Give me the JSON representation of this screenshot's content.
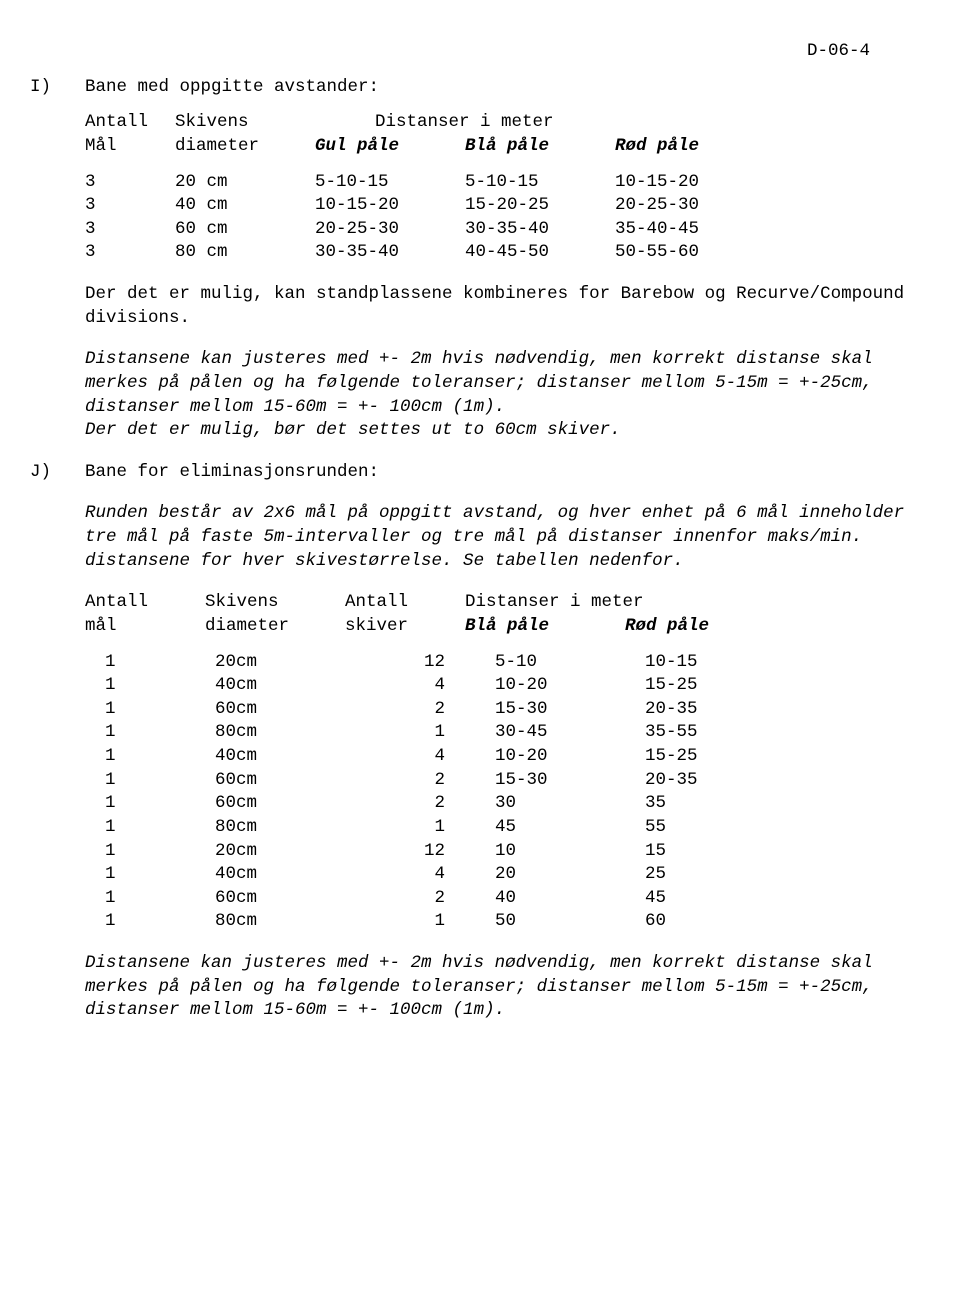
{
  "page_id": "D-06-4",
  "sectionI": {
    "label": "I)",
    "title": "Bane med oppgitte avstander:",
    "header": {
      "r1": {
        "c1": "Antall",
        "c2": "Skivens",
        "c3": "Distanser i meter"
      },
      "r2": {
        "c1": "Mål",
        "c2": "diameter",
        "c3": "Gul påle",
        "c4": "Blå påle",
        "c5": "Rød påle"
      }
    },
    "rows": [
      {
        "antall": "3",
        "dia": "20 cm",
        "gul": "5-10-15",
        "bla": "5-10-15",
        "rod": "10-15-20"
      },
      {
        "antall": "3",
        "dia": "40 cm",
        "gul": "10-15-20",
        "bla": "15-20-25",
        "rod": "20-25-30"
      },
      {
        "antall": "3",
        "dia": "60 cm",
        "gul": "20-25-30",
        "bla": "30-35-40",
        "rod": "35-40-45"
      },
      {
        "antall": "3",
        "dia": "80 cm",
        "gul": "30-35-40",
        "bla": "40-45-50",
        "rod": "50-55-60"
      }
    ],
    "para1": "Der det er mulig, kan standplassene kombineres for Barebow og Recurve/Compound divisions.",
    "para2": "Distansene kan justeres med +- 2m hvis nødvendig, men korrekt distanse skal merkes på pålen og ha følgende toleranser; distanser mellom 5-15m = +-25cm, distanser mellom 15-60m = +- 100cm (1m).",
    "para3": "Der det er mulig, bør det settes ut to 60cm skiver."
  },
  "sectionJ": {
    "label": "J)",
    "title": "Bane for eliminasjonsrunden:",
    "para1": "Runden består av 2x6 mål på oppgitt avstand, og hver enhet på 6 mål inneholder tre mål på faste 5m-intervaller og tre mål på distanser innenfor maks/min. distansene for hver skivestørrelse. Se tabellen nedenfor.",
    "header": {
      "r1": {
        "c1": "Antall",
        "c2": "Skivens",
        "c3": "Antall",
        "c4": "Distanser i meter"
      },
      "r2": {
        "c1": "mål",
        "c2": "diameter",
        "c3": "skiver",
        "c4": "Blå påle",
        "c5": "Rød påle"
      }
    },
    "rows": [
      {
        "antall": "1",
        "dia": "20cm",
        "skiver": "12",
        "bla": "5-10",
        "rod": "10-15"
      },
      {
        "antall": "1",
        "dia": "40cm",
        "skiver": "4",
        "bla": "10-20",
        "rod": "15-25"
      },
      {
        "antall": "1",
        "dia": "60cm",
        "skiver": "2",
        "bla": "15-30",
        "rod": "20-35"
      },
      {
        "antall": "1",
        "dia": "80cm",
        "skiver": "1",
        "bla": "30-45",
        "rod": "35-55"
      },
      {
        "antall": "1",
        "dia": "40cm",
        "skiver": "4",
        "bla": "10-20",
        "rod": "15-25"
      },
      {
        "antall": "1",
        "dia": "60cm",
        "skiver": "2",
        "bla": "15-30",
        "rod": "20-35"
      },
      {
        "antall": "1",
        "dia": "60cm",
        "skiver": "2",
        "bla": "30",
        "rod": "35"
      },
      {
        "antall": "1",
        "dia": "80cm",
        "skiver": "1",
        "bla": "45",
        "rod": "55"
      },
      {
        "antall": "1",
        "dia": "20cm",
        "skiver": "12",
        "bla": "10",
        "rod": "15"
      },
      {
        "antall": "1",
        "dia": "40cm",
        "skiver": "4",
        "bla": "20",
        "rod": "25"
      },
      {
        "antall": "1",
        "dia": "60cm",
        "skiver": "2",
        "bla": "40",
        "rod": "45"
      },
      {
        "antall": "1",
        "dia": "80cm",
        "skiver": "1",
        "bla": "50",
        "rod": "60"
      }
    ],
    "para2": "Distansene kan justeres med +- 2m hvis nødvendig, men korrekt distanse skal merkes på pålen og ha følgende toleranser; distanser mellom 5-15m = +-25cm, distanser mellom 15-60m = +- 100cm (1m)."
  }
}
